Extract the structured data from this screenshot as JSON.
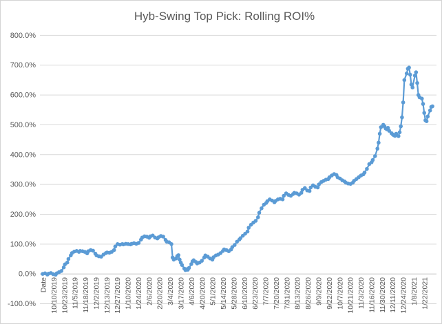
{
  "chart_data": {
    "type": "line",
    "title": "Hyb-Swing Top Pick: Rolling ROI%",
    "legend": "none",
    "grid": "horizontal",
    "x_axis": {
      "lead_label": "Date",
      "tick_labels": [
        "10/10/2019",
        "10/23/2019",
        "11/5/2019",
        "11/18/2019",
        "12/2/2019",
        "12/13/2019",
        "12/27/2019",
        "1/10/2020",
        "1/24/2020",
        "2/6/2020",
        "2/20/2020",
        "3/4/2020",
        "3/17/2020",
        "4/6/2020",
        "4/20/2020",
        "5/1/2020",
        "5/14/2020",
        "5/28/2020",
        "6/10/2020",
        "6/23/2020",
        "7/7/2020",
        "7/20/2020",
        "7/31/2020",
        "8/13/2020",
        "8/26/2020",
        "9/9/2020",
        "9/22/2020",
        "10/7/2020",
        "10/21/2020",
        "11/3/2020",
        "11/16/2020",
        "11/30/2020",
        "12/11/2020",
        "12/24/2020",
        "1/8/2021",
        "1/22/2021"
      ],
      "label_rotation_deg": -90
    },
    "y_axis": {
      "tick_labels": [
        "800.0%",
        "700.0%",
        "600.0%",
        "500.0%",
        "400.0%",
        "300.0%",
        "200.0%",
        "100.0%",
        "0.0%",
        "-100.0%"
      ],
      "min_pct": -100,
      "max_pct": 800,
      "step_pct": 100
    },
    "series": [
      {
        "name": "Rolling ROI%",
        "color": "#5B9BD5",
        "marker": "circle",
        "unit": "percent",
        "points": [
          [
            0,
            0
          ],
          [
            2,
            2
          ],
          [
            4,
            -2
          ],
          [
            5,
            1
          ],
          [
            7,
            3
          ],
          [
            9,
            -1
          ],
          [
            11,
            -3
          ],
          [
            12,
            2
          ],
          [
            14,
            6
          ],
          [
            16,
            10
          ],
          [
            18,
            22
          ],
          [
            19,
            32
          ],
          [
            21,
            38
          ],
          [
            22,
            50
          ],
          [
            24,
            62
          ],
          [
            25,
            70
          ],
          [
            27,
            75
          ],
          [
            29,
            77
          ],
          [
            31,
            74
          ],
          [
            32,
            77
          ],
          [
            34,
            76
          ],
          [
            36,
            74
          ],
          [
            38,
            69
          ],
          [
            39,
            76
          ],
          [
            41,
            80
          ],
          [
            43,
            78
          ],
          [
            45,
            68
          ],
          [
            46,
            62
          ],
          [
            48,
            59
          ],
          [
            50,
            58
          ],
          [
            52,
            65
          ],
          [
            54,
            70
          ],
          [
            55,
            72
          ],
          [
            57,
            71
          ],
          [
            59,
            74
          ],
          [
            61,
            80
          ],
          [
            62,
            92
          ],
          [
            64,
            100
          ],
          [
            66,
            98
          ],
          [
            68,
            100
          ],
          [
            69,
            99
          ],
          [
            71,
            101
          ],
          [
            73,
            100
          ],
          [
            75,
            99
          ],
          [
            76,
            101
          ],
          [
            78,
            103
          ],
          [
            80,
            101
          ],
          [
            82,
            104
          ],
          [
            84,
            115
          ],
          [
            85,
            122
          ],
          [
            87,
            126
          ],
          [
            89,
            125
          ],
          [
            91,
            121
          ],
          [
            92,
            126
          ],
          [
            94,
            129
          ],
          [
            96,
            122
          ],
          [
            98,
            119
          ],
          [
            99,
            123
          ],
          [
            101,
            127
          ],
          [
            103,
            125
          ],
          [
            105,
            114
          ],
          [
            106,
            108
          ],
          [
            108,
            106
          ],
          [
            110,
            100
          ],
          [
            111,
            55
          ],
          [
            112,
            48
          ],
          [
            114,
            52
          ],
          [
            115,
            60
          ],
          [
            116,
            63
          ],
          [
            117,
            48
          ],
          [
            118,
            38
          ],
          [
            119,
            30
          ],
          [
            121,
            18
          ],
          [
            122,
            13
          ],
          [
            123,
            16
          ],
          [
            124,
            14
          ],
          [
            125,
            20
          ],
          [
            127,
            33
          ],
          [
            128,
            42
          ],
          [
            129,
            46
          ],
          [
            131,
            40
          ],
          [
            132,
            35
          ],
          [
            134,
            38
          ],
          [
            136,
            44
          ],
          [
            138,
            55
          ],
          [
            139,
            62
          ],
          [
            141,
            58
          ],
          [
            143,
            52
          ],
          [
            145,
            48
          ],
          [
            146,
            56
          ],
          [
            148,
            62
          ],
          [
            150,
            65
          ],
          [
            152,
            70
          ],
          [
            154,
            77
          ],
          [
            155,
            82
          ],
          [
            157,
            80
          ],
          [
            159,
            76
          ],
          [
            161,
            82
          ],
          [
            162,
            90
          ],
          [
            164,
            97
          ],
          [
            166,
            108
          ],
          [
            168,
            115
          ],
          [
            169,
            120
          ],
          [
            171,
            128
          ],
          [
            173,
            135
          ],
          [
            175,
            142
          ],
          [
            176,
            155
          ],
          [
            178,
            165
          ],
          [
            180,
            172
          ],
          [
            182,
            178
          ],
          [
            184,
            190
          ],
          [
            185,
            205
          ],
          [
            187,
            220
          ],
          [
            189,
            232
          ],
          [
            191,
            238
          ],
          [
            192,
            244
          ],
          [
            194,
            250
          ],
          [
            196,
            246
          ],
          [
            198,
            240
          ],
          [
            199,
            245
          ],
          [
            201,
            250
          ],
          [
            203,
            252
          ],
          [
            205,
            250
          ],
          [
            206,
            262
          ],
          [
            208,
            270
          ],
          [
            210,
            265
          ],
          [
            212,
            262
          ],
          [
            214,
            268
          ],
          [
            215,
            272
          ],
          [
            217,
            270
          ],
          [
            219,
            266
          ],
          [
            221,
            272
          ],
          [
            222,
            282
          ],
          [
            224,
            288
          ],
          [
            226,
            280
          ],
          [
            228,
            278
          ],
          [
            229,
            290
          ],
          [
            231,
            297
          ],
          [
            233,
            292
          ],
          [
            235,
            290
          ],
          [
            236,
            300
          ],
          [
            238,
            308
          ],
          [
            240,
            312
          ],
          [
            242,
            316
          ],
          [
            244,
            318
          ],
          [
            245,
            324
          ],
          [
            247,
            330
          ],
          [
            249,
            335
          ],
          [
            251,
            332
          ],
          [
            252,
            324
          ],
          [
            254,
            320
          ],
          [
            256,
            314
          ],
          [
            258,
            310
          ],
          [
            259,
            306
          ],
          [
            261,
            303
          ],
          [
            263,
            302
          ],
          [
            265,
            306
          ],
          [
            266,
            312
          ],
          [
            268,
            318
          ],
          [
            270,
            324
          ],
          [
            272,
            330
          ],
          [
            274,
            334
          ],
          [
            275,
            340
          ],
          [
            277,
            352
          ],
          [
            279,
            368
          ],
          [
            281,
            374
          ],
          [
            282,
            382
          ],
          [
            284,
            395
          ],
          [
            286,
            420
          ],
          [
            287,
            440
          ],
          [
            288,
            470
          ],
          [
            289,
            492
          ],
          [
            291,
            500
          ],
          [
            292,
            495
          ],
          [
            293,
            488
          ],
          [
            294,
            485
          ],
          [
            295,
            490
          ],
          [
            296,
            480
          ],
          [
            298,
            472
          ],
          [
            299,
            468
          ],
          [
            300,
            465
          ],
          [
            301,
            463
          ],
          [
            302,
            470
          ],
          [
            304,
            462
          ],
          [
            305,
            475
          ],
          [
            306,
            495
          ],
          [
            307,
            525
          ],
          [
            308,
            575
          ],
          [
            309,
            650
          ],
          [
            311,
            672
          ],
          [
            312,
            688
          ],
          [
            313,
            692
          ],
          [
            314,
            668
          ],
          [
            315,
            635
          ],
          [
            316,
            625
          ],
          [
            318,
            665
          ],
          [
            319,
            676
          ],
          [
            320,
            640
          ],
          [
            321,
            600
          ],
          [
            322,
            592
          ],
          [
            324,
            588
          ],
          [
            325,
            570
          ],
          [
            326,
            540
          ],
          [
            327,
            515
          ],
          [
            328,
            512
          ],
          [
            329,
            528
          ],
          [
            331,
            548
          ],
          [
            332,
            560
          ],
          [
            333,
            562
          ]
        ]
      }
    ],
    "colors": {
      "series_blue": "#5B9BD5",
      "gridline": "#D9D9D9",
      "axis_line": "#BFBFBF",
      "text": "#595959"
    }
  }
}
